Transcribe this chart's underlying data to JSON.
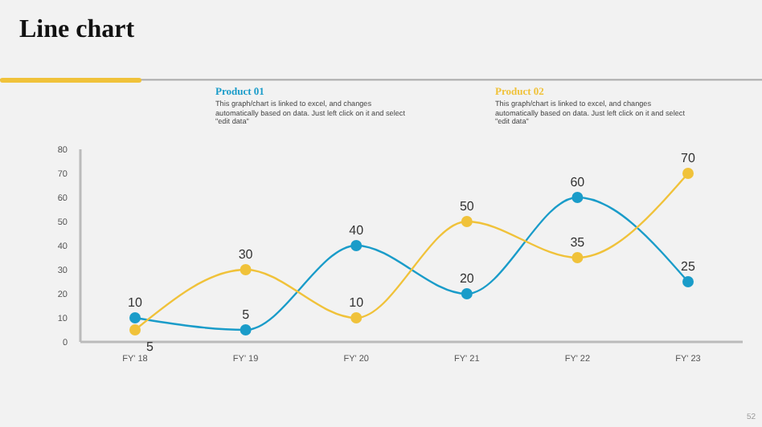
{
  "chart_data": {
    "type": "line",
    "title": "Line chart",
    "categories": [
      "FY' 18",
      "FY' 19",
      "FY' 20",
      "FY' 21",
      "FY' 22",
      "FY' 23"
    ],
    "series": [
      {
        "name": "Product 01",
        "color": "#1a9cc9",
        "values": [
          10,
          5,
          40,
          20,
          60,
          25
        ]
      },
      {
        "name": "Product 02",
        "color": "#f0c23a",
        "values": [
          5,
          30,
          10,
          50,
          35,
          70
        ]
      }
    ],
    "ylim": [
      0,
      80
    ],
    "yticks": [
      0,
      10,
      20,
      30,
      40,
      50,
      60,
      70,
      80
    ],
    "data_labels": true,
    "legend": "top",
    "marker": "circle",
    "line_style": "solid",
    "grid": false,
    "annotations": [
      "This graph/chart is linked to excel, and changes automatically based on data. Just left click on it and select \"edit data\"",
      "This graph/chart is linked to excel, and changes automatically based on data. Just left click on it and select \"edit data\"",
      "52"
    ]
  }
}
